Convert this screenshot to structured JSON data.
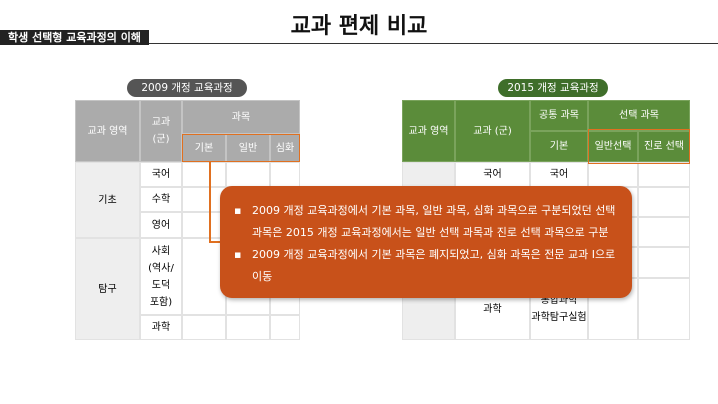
{
  "header": {
    "tag": "학생 선택형 교육과정의 이해",
    "title": "교과 편제 비교"
  },
  "left": {
    "label": "2009 개정 교육과정",
    "headers": [
      "교과 영역",
      "교과 (군)",
      "과목",
      "기본",
      "일반",
      "심화"
    ],
    "groups": [
      {
        "area": "기초",
        "subjects": [
          "국어",
          "수학",
          "영어"
        ]
      },
      {
        "area": "탐구",
        "subjects": [
          "사회 (역사/도덕 포함)",
          "과학"
        ]
      }
    ]
  },
  "right": {
    "label": "2015 개정 교육과정",
    "headers": [
      "교과 영역",
      "교과 (군)",
      "공통 과목",
      "선택 과목",
      "기본",
      "일반선택",
      "진로 선택"
    ],
    "rows": [
      [
        "국어",
        "국어"
      ],
      [
        "과학",
        "통합과학 과학탐구실험"
      ]
    ]
  },
  "callout": {
    "bullets": [
      "2009 개정 교육과정에서 기본 과목, 일반 과목, 심화 과목으로 구분되었던 선택 과목은 2015 개정 교육과정에서는 일반 선택 과목과 진로 선택 과목으로 구분",
      "2009 개정 교육과정에서 기본 과목은 폐지되었고, 심화 과목은 전문 교과 Ⅰ으로 이동"
    ]
  }
}
